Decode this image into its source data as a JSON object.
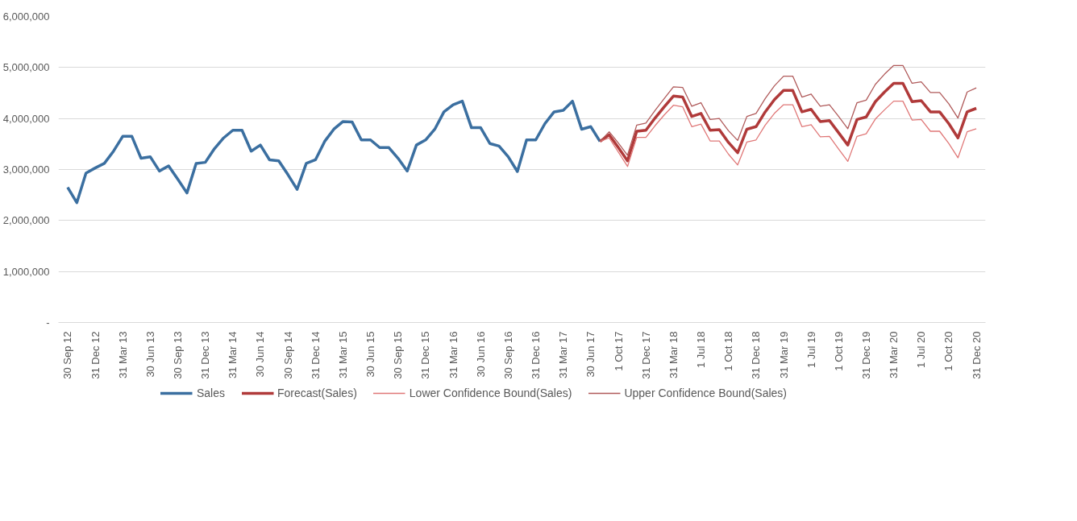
{
  "chart_data": {
    "type": "line",
    "categories": [
      "30 Sep 12",
      null,
      null,
      "31 Dec 12",
      null,
      null,
      "31 Mar 13",
      null,
      null,
      "30 Jun 13",
      null,
      null,
      "30 Sep 13",
      null,
      null,
      "31 Dec 13",
      null,
      null,
      "31 Mar 14",
      null,
      null,
      "30 Jun 14",
      null,
      null,
      "30 Sep 14",
      null,
      null,
      "31 Dec 14",
      null,
      null,
      "31 Mar 15",
      null,
      null,
      "30 Jun 15",
      null,
      null,
      "30 Sep 15",
      null,
      null,
      "31 Dec 15",
      null,
      null,
      "31 Mar 16",
      null,
      null,
      "30 Jun 16",
      null,
      null,
      "30 Sep 16",
      null,
      null,
      "31 Dec 16",
      null,
      null,
      "31 Mar 17",
      null,
      null,
      "30 Jun 17",
      null,
      null,
      "1 Oct 17",
      null,
      null,
      "31 Dec 17",
      null,
      null,
      "31 Mar 18",
      null,
      null,
      "1 Jul 18",
      null,
      null,
      "1 Oct 18",
      null,
      null,
      "31 Dec 18",
      null,
      null,
      "31 Mar 19",
      null,
      null,
      "1 Jul 19",
      null,
      null,
      "1 Oct 19",
      null,
      null,
      "31 Dec 19",
      null,
      null,
      "31 Mar 20",
      null,
      null,
      "1 Jul 20",
      null,
      null,
      "1 Oct 20",
      null,
      null,
      "31 Dec 20"
    ],
    "series": [
      {
        "name": "Sales",
        "color": "#3b6fa0",
        "values": [
          2650000,
          2350000,
          2930000,
          3030000,
          3120000,
          3360000,
          3650000,
          3650000,
          3220000,
          3250000,
          2970000,
          3070000,
          2810000,
          2540000,
          3120000,
          3140000,
          3410000,
          3620000,
          3770000,
          3770000,
          3360000,
          3480000,
          3190000,
          3170000,
          2900000,
          2610000,
          3120000,
          3190000,
          3550000,
          3790000,
          3940000,
          3930000,
          3580000,
          3580000,
          3430000,
          3430000,
          3220000,
          2970000,
          3480000,
          3580000,
          3790000,
          4130000,
          4270000,
          4340000,
          3820000,
          3820000,
          3510000,
          3460000,
          3250000,
          2960000,
          3580000,
          3580000,
          3900000,
          4130000,
          4160000,
          4340000,
          3790000,
          3840000,
          3550000,
          null,
          null,
          null,
          null,
          null,
          null,
          null,
          null,
          null,
          null,
          null,
          null,
          null,
          null,
          null,
          null,
          null,
          null,
          null,
          null,
          null,
          null,
          null,
          null,
          null,
          null,
          null,
          null,
          null,
          null,
          null,
          null,
          null,
          null,
          null,
          null,
          null,
          null,
          null,
          null,
          null
        ]
      },
      {
        "name": "Forecast(Sales)",
        "color": "#b03a3a",
        "values": [
          null,
          null,
          null,
          null,
          null,
          null,
          null,
          null,
          null,
          null,
          null,
          null,
          null,
          null,
          null,
          null,
          null,
          null,
          null,
          null,
          null,
          null,
          null,
          null,
          null,
          null,
          null,
          null,
          null,
          null,
          null,
          null,
          null,
          null,
          null,
          null,
          null,
          null,
          null,
          null,
          null,
          null,
          null,
          null,
          null,
          null,
          null,
          null,
          null,
          null,
          null,
          null,
          null,
          null,
          null,
          null,
          null,
          null,
          3550000,
          3680000,
          3430000,
          3170000,
          3750000,
          3770000,
          4010000,
          4230000,
          4440000,
          4420000,
          4040000,
          4100000,
          3770000,
          3780000,
          3530000,
          3330000,
          3790000,
          3840000,
          4130000,
          4370000,
          4550000,
          4550000,
          4130000,
          4180000,
          3940000,
          3960000,
          3720000,
          3480000,
          3980000,
          4030000,
          4330000,
          4520000,
          4690000,
          4690000,
          4330000,
          4350000,
          4130000,
          4130000,
          3900000,
          3620000,
          4130000,
          4200000
        ]
      },
      {
        "name": "Lower Confidence Bound(Sales)",
        "color": "#e07878",
        "values": [
          null,
          null,
          null,
          null,
          null,
          null,
          null,
          null,
          null,
          null,
          null,
          null,
          null,
          null,
          null,
          null,
          null,
          null,
          null,
          null,
          null,
          null,
          null,
          null,
          null,
          null,
          null,
          null,
          null,
          null,
          null,
          null,
          null,
          null,
          null,
          null,
          null,
          null,
          null,
          null,
          null,
          null,
          null,
          null,
          null,
          null,
          null,
          null,
          null,
          null,
          null,
          null,
          null,
          null,
          null,
          null,
          null,
          null,
          3550000,
          3620000,
          3340000,
          3060000,
          3630000,
          3630000,
          3860000,
          4070000,
          4260000,
          4230000,
          3840000,
          3890000,
          3560000,
          3560000,
          3300000,
          3090000,
          3540000,
          3580000,
          3870000,
          4100000,
          4270000,
          4270000,
          3840000,
          3880000,
          3640000,
          3650000,
          3400000,
          3160000,
          3650000,
          3700000,
          3990000,
          4170000,
          4340000,
          4340000,
          3970000,
          3980000,
          3750000,
          3750000,
          3510000,
          3230000,
          3740000,
          3800000
        ]
      },
      {
        "name": "Upper Confidence Bound(Sales)",
        "color": "#b05a5a",
        "values": [
          null,
          null,
          null,
          null,
          null,
          null,
          null,
          null,
          null,
          null,
          null,
          null,
          null,
          null,
          null,
          null,
          null,
          null,
          null,
          null,
          null,
          null,
          null,
          null,
          null,
          null,
          null,
          null,
          null,
          null,
          null,
          null,
          null,
          null,
          null,
          null,
          null,
          null,
          null,
          null,
          null,
          null,
          null,
          null,
          null,
          null,
          null,
          null,
          null,
          null,
          null,
          null,
          null,
          null,
          null,
          null,
          null,
          null,
          3550000,
          3740000,
          3520000,
          3280000,
          3870000,
          3910000,
          4160000,
          4390000,
          4620000,
          4610000,
          4240000,
          4310000,
          3980000,
          4000000,
          3760000,
          3570000,
          4040000,
          4100000,
          4390000,
          4640000,
          4830000,
          4830000,
          4420000,
          4480000,
          4240000,
          4270000,
          4040000,
          3800000,
          4310000,
          4360000,
          4670000,
          4870000,
          5040000,
          5040000,
          4690000,
          4720000,
          4510000,
          4510000,
          4290000,
          4010000,
          4520000,
          4600000
        ]
      }
    ],
    "ylim": [
      0,
      6000000
    ],
    "yticks": [
      {
        "value": 0,
        "label": "-"
      },
      {
        "value": 1000000,
        "label": "1,000,000"
      },
      {
        "value": 2000000,
        "label": "2,000,000"
      },
      {
        "value": 3000000,
        "label": "3,000,000"
      },
      {
        "value": 4000000,
        "label": "4,000,000"
      },
      {
        "value": 5000000,
        "label": "5,000,000"
      },
      {
        "value": 6000000,
        "label": "6,000,000"
      }
    ],
    "grid": "y",
    "legend": "bottom",
    "marker": "none",
    "line_style": "solid"
  }
}
